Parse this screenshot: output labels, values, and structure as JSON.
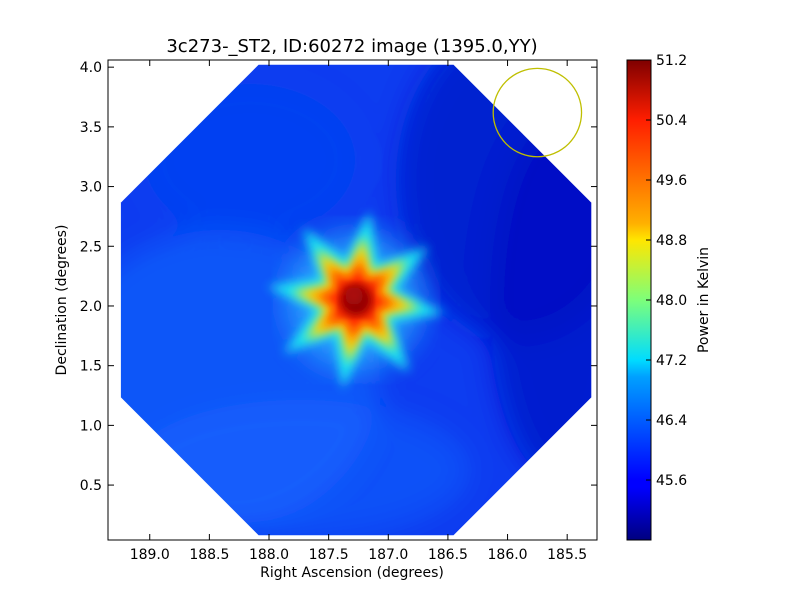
{
  "chart_data": {
    "type": "heatmap",
    "title": "3c273-_ST2, ID:60272 image (1395.0,YY)",
    "xlabel": "Right Ascension (degrees)",
    "ylabel": "Declination (degrees)",
    "x_range": [
      189.35,
      185.25
    ],
    "y_range": [
      0.04,
      4.06
    ],
    "x_ticks": [
      "189.0",
      "188.5",
      "188.0",
      "187.5",
      "187.0",
      "186.5",
      "186.0",
      "185.5"
    ],
    "y_ticks": [
      "0.5",
      "1.0",
      "1.5",
      "2.0",
      "2.5",
      "3.0",
      "3.5",
      "4.0"
    ],
    "colorbar": {
      "label": "Power in Kelvin",
      "range": [
        44.8,
        51.2
      ],
      "ticks": [
        "45.6",
        "46.4",
        "47.2",
        "48.0",
        "48.8",
        "49.6",
        "50.4",
        "51.2"
      ],
      "colormap": "jet"
    },
    "map": {
      "shape": "octagon",
      "center_ra": 187.27,
      "center_dec": 2.05,
      "radius_deg": 2.0,
      "background_min_kelvin": 45.1,
      "background_max_kelvin": 46.2,
      "source": {
        "name": "3c273",
        "ra": 187.27,
        "dec": 2.05,
        "peak_kelvin": 51.0,
        "spikes": 8
      },
      "beam_circle": {
        "ra": 185.75,
        "dec": 3.62,
        "radius_deg": 0.37,
        "color": "#bfbf00"
      }
    }
  }
}
